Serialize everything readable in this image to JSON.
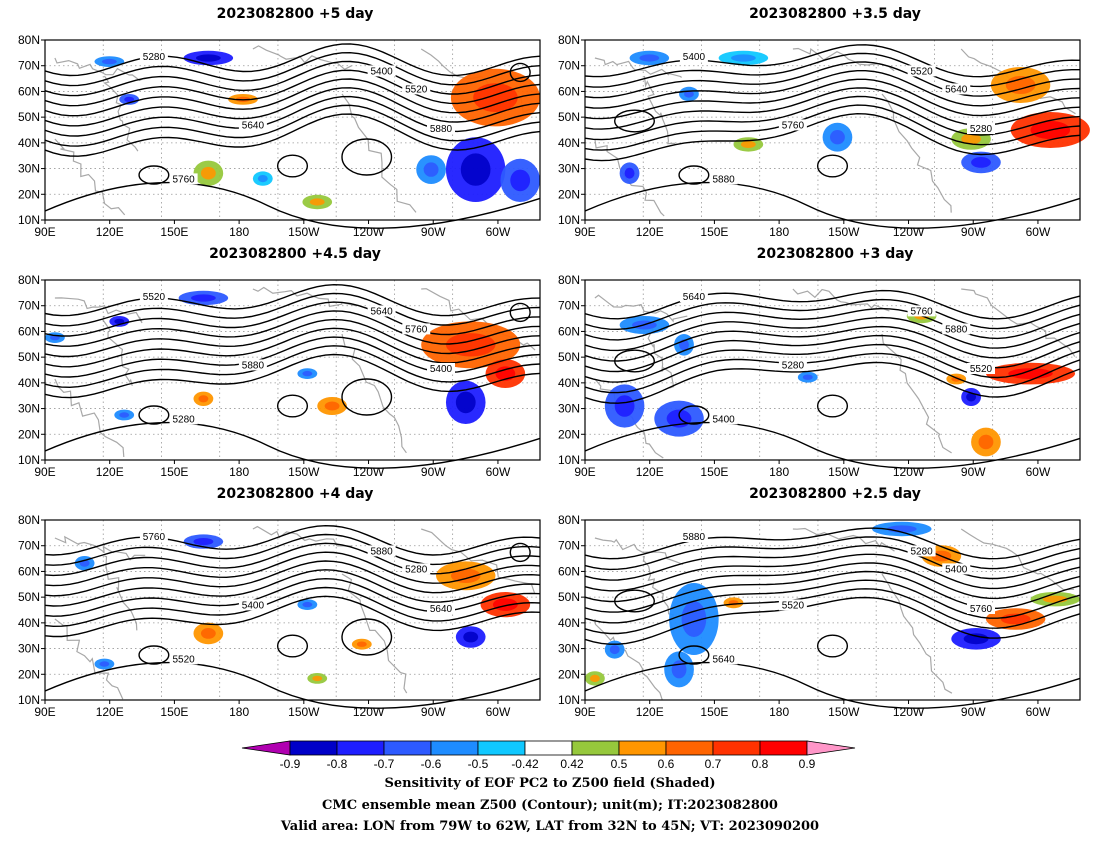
{
  "panels": [
    {
      "title": "2023082800  +5 day"
    },
    {
      "title": "2023082800  +3.5 day"
    },
    {
      "title": "2023082800  +4.5 day"
    },
    {
      "title": "2023082800  +3 day"
    },
    {
      "title": "2023082800  +4 day"
    },
    {
      "title": "2023082800  +2.5 day"
    }
  ],
  "lat_ticks": [
    "80N",
    "70N",
    "60N",
    "50N",
    "40N",
    "30N",
    "20N",
    "10N"
  ],
  "lon_ticks": [
    "90E",
    "120E",
    "150E",
    "180",
    "150W",
    "120W",
    "90W",
    "60W"
  ],
  "contour_labels": [
    "5400",
    "5520",
    "5640",
    "5760",
    "5880",
    "5280"
  ],
  "colorbar": {
    "labels": [
      "-0.9",
      "-0.8",
      "-0.7",
      "-0.6",
      "-0.5",
      "-0.42",
      "0.42",
      "0.5",
      "0.6",
      "0.7",
      "0.8",
      "0.9"
    ],
    "colors": [
      "#b000b0",
      "#0000c8",
      "#1e1eff",
      "#2d5aff",
      "#1e8cff",
      "#10c8ff",
      "#ffffff",
      "#96c83c",
      "#ff9600",
      "#ff6400",
      "#ff3200",
      "#ff0000",
      "#ff96c8"
    ]
  },
  "caption": {
    "line1": "Sensitivity of EOF PC2 to Z500 field (Shaded)",
    "line2": "CMC ensemble mean Z500 (Contour); unit(m); IT:2023082800",
    "line3": "Valid area: LON from 79W to 62W, LAT from 32N to 45N; VT: 2023090200"
  }
}
